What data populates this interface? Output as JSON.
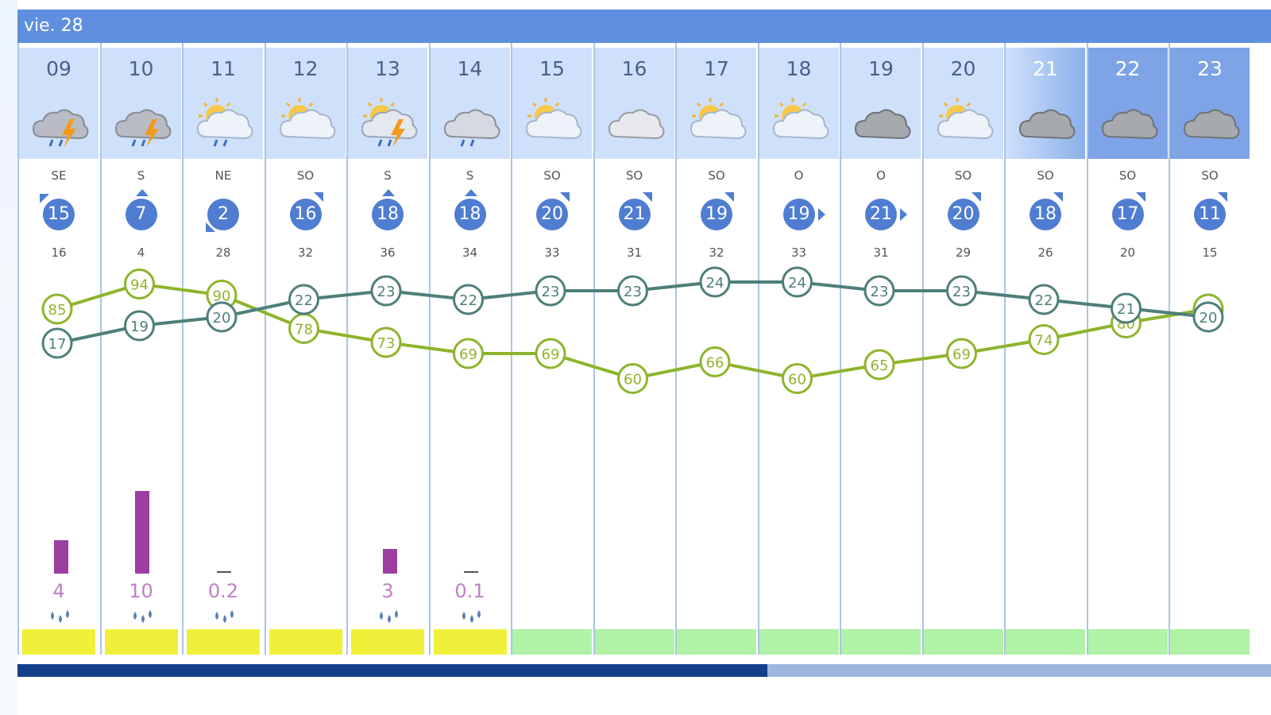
{
  "day_label": "vie. 28",
  "colors": {
    "header_blue": "#5f8fdf",
    "wind_badge": "#4f7dd1",
    "rain_bar": "#9b3ea0",
    "temp_line": "#4e7f7a",
    "humidity_line": "#8db52c",
    "uv_yellow": "#f0f03a",
    "uv_green": "#b0f2a6"
  },
  "chart_data": {
    "type": "line",
    "x": [
      "09",
      "10",
      "11",
      "12",
      "13",
      "14",
      "15",
      "16",
      "17",
      "18",
      "19",
      "20",
      "21",
      "22",
      "23"
    ],
    "night_hours": [
      "21",
      "22",
      "23"
    ],
    "weather_icons": [
      "storm-rain-icon",
      "storm-rain-icon",
      "sun-cloud-rain-icon",
      "sun-cloud-icon",
      "sun-storm-icon",
      "cloud-rain-icon",
      "sun-cloud-icon",
      "cloud-icon",
      "sun-cloud-icon",
      "sun-cloud-icon",
      "dark-cloud-icon",
      "sun-cloud-icon",
      "dark-cloud-icon",
      "dark-cloud-icon",
      "dark-cloud-icon"
    ],
    "wind_direction": [
      "SE",
      "S",
      "NE",
      "SO",
      "S",
      "S",
      "SO",
      "SO",
      "SO",
      "O",
      "O",
      "SO",
      "SO",
      "SO",
      "SO"
    ],
    "wind_speed": [
      15,
      7,
      2,
      16,
      18,
      18,
      20,
      21,
      19,
      19,
      21,
      20,
      18,
      17,
      11
    ],
    "wind_gust": [
      16,
      4,
      28,
      32,
      36,
      34,
      33,
      31,
      32,
      33,
      31,
      29,
      26,
      20,
      15
    ],
    "series": [
      {
        "values": [
          17,
          19,
          20,
          22,
          23,
          22,
          23,
          23,
          24,
          24,
          23,
          23,
          22,
          21,
          20
        ],
        "color": "#4e7f7a"
      },
      {
        "values": [
          85,
          94,
          90,
          78,
          73,
          69,
          69,
          60,
          66,
          60,
          65,
          69,
          74,
          80,
          85
        ],
        "color": "#8db52c"
      }
    ],
    "precipitation": [
      4,
      10,
      0.2,
      null,
      3,
      0.1,
      null,
      null,
      null,
      null,
      null,
      null,
      null,
      null,
      null
    ],
    "precipitation_labels": [
      "4",
      "10",
      "0.2",
      "",
      "3",
      "0.1",
      "",
      "",
      "",
      "",
      "",
      "",
      "",
      "",
      ""
    ],
    "uv_level": [
      "yellow",
      "yellow",
      "yellow",
      "yellow",
      "yellow",
      "yellow",
      "green",
      "green",
      "green",
      "green",
      "green",
      "green",
      "green",
      "green",
      "green"
    ]
  }
}
